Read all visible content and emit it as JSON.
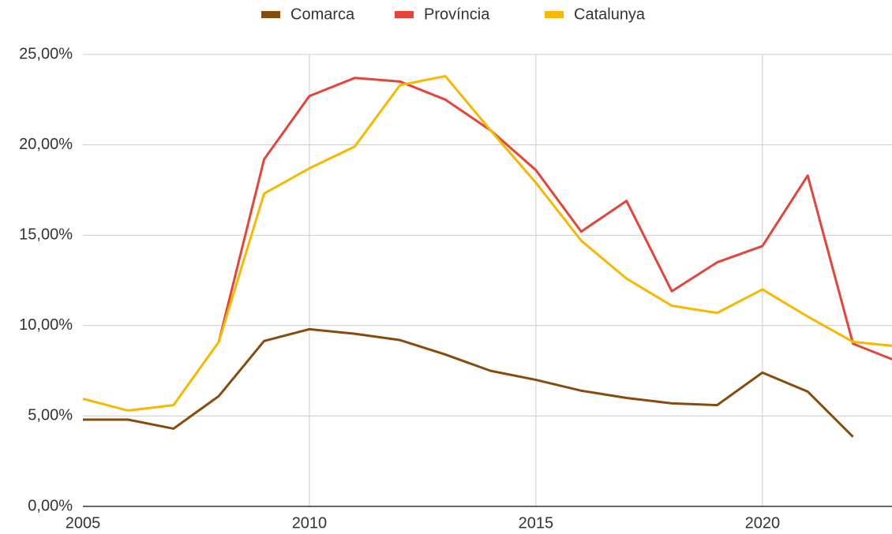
{
  "chart_data": {
    "type": "line",
    "x": [
      2005,
      2006,
      2007,
      2008,
      2009,
      2010,
      2011,
      2012,
      2013,
      2014,
      2015,
      2016,
      2017,
      2018,
      2019,
      2020,
      2021,
      2022,
      2023
    ],
    "series": [
      {
        "name": "Comarca",
        "color": "#874c0d",
        "values": [
          4.8,
          4.8,
          4.3,
          6.1,
          9.15,
          9.8,
          9.55,
          9.2,
          8.4,
          7.5,
          7.0,
          6.4,
          6.0,
          5.7,
          5.6,
          7.4,
          6.35,
          3.85,
          null
        ]
      },
      {
        "name": "Província",
        "color": "#e5443a",
        "values": [
          null,
          null,
          null,
          9.1,
          19.2,
          22.7,
          23.7,
          23.5,
          22.5,
          20.8,
          18.6,
          15.2,
          16.9,
          11.9,
          13.5,
          14.4,
          18.3,
          9.0,
          8.0
        ]
      },
      {
        "name": "Catalunya",
        "color": "#f6b900",
        "values": [
          5.95,
          5.3,
          5.6,
          9.1,
          17.3,
          18.7,
          19.9,
          23.3,
          23.8,
          20.8,
          17.9,
          14.7,
          12.6,
          11.1,
          10.7,
          12.0,
          10.5,
          9.1,
          8.85
        ]
      }
    ],
    "xlim": [
      2005,
      2023
    ],
    "xticks": [
      2005,
      2010,
      2015,
      2020
    ],
    "ylim": [
      0,
      25
    ],
    "yticks": [
      {
        "value": 0,
        "label": "0,00%"
      },
      {
        "value": 5,
        "label": "5,00%"
      },
      {
        "value": 10,
        "label": "10,00%"
      },
      {
        "value": 15,
        "label": "15,00%"
      },
      {
        "value": 20,
        "label": "20,00%"
      },
      {
        "value": 25,
        "label": "25,00%"
      }
    ],
    "grid": true,
    "legend": "top"
  }
}
